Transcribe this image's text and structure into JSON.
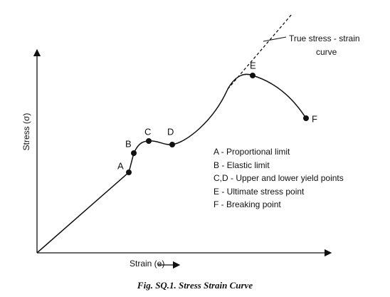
{
  "diagram": {
    "annotation": [
      "True stress - strain",
      "curve"
    ],
    "points": [
      "A",
      "B",
      "C",
      "D",
      "E",
      "F"
    ],
    "legend": [
      "A - Proportional limit",
      "B - Elastic limit",
      "C,D - Upper and lower yield points",
      "E - Ultimate stress point",
      "F - Breaking point"
    ],
    "y_axis_label": "Stress (σ)",
    "x_axis_label": "Strain (e)",
    "caption": "Fig. SQ.1. Stress  Strain Curve"
  }
}
